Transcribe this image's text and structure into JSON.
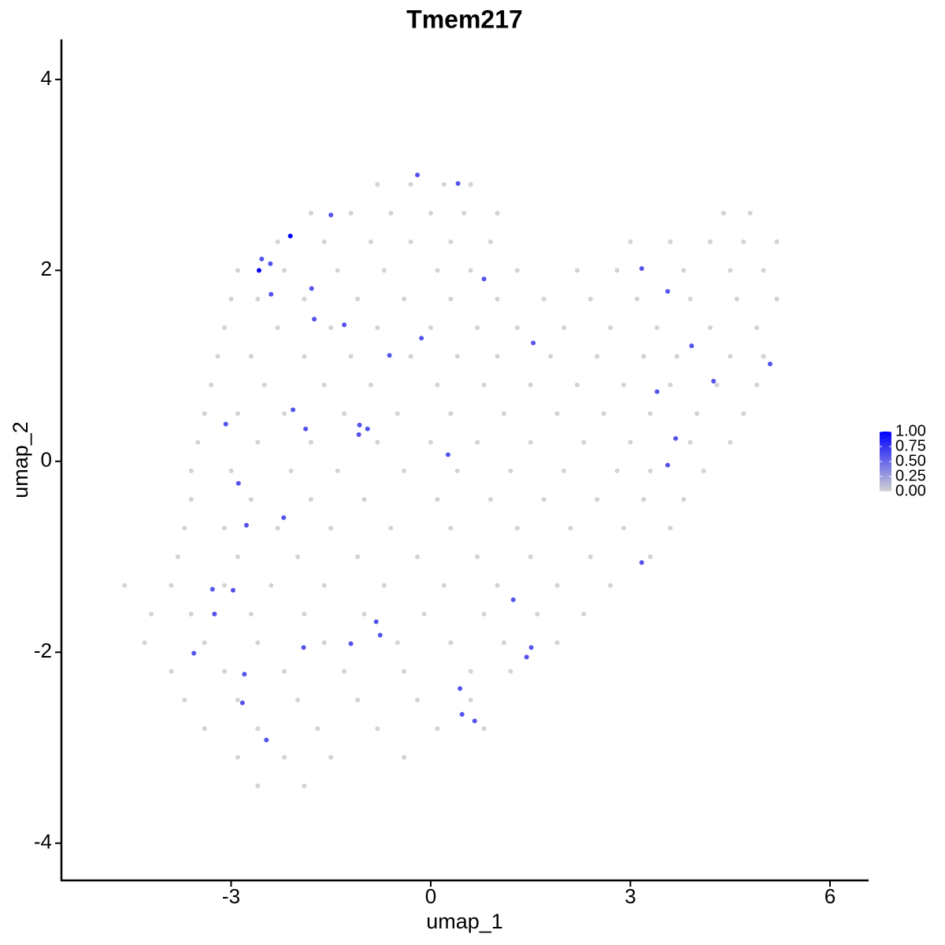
{
  "chart_data": {
    "type": "scatter",
    "title": "Tmem217",
    "x_label": "umap_1",
    "y_label": "umap_2",
    "xlim": [
      -5.55,
      6.58
    ],
    "ylim": [
      -4.39,
      4.42
    ],
    "xticks": [
      -3,
      0,
      3,
      6
    ],
    "yticks": [
      -4,
      -2,
      0,
      2,
      4
    ],
    "colors": [
      "#d3d3d3",
      "#0000ff"
    ],
    "legend_ticks": [
      {
        "value": 0,
        "label": "0.00"
      },
      {
        "value": 0.25,
        "label": "0.25"
      },
      {
        "value": 0.5,
        "label": "0.50"
      },
      {
        "value": 0.75,
        "label": "0.75"
      },
      {
        "value": 1,
        "label": "1.00"
      }
    ],
    "points": [
      [
        -0.8,
        2.9,
        0
      ],
      [
        -0.3,
        2.9,
        0
      ],
      [
        0.2,
        2.9,
        0
      ],
      [
        0.6,
        2.9,
        0
      ],
      [
        -1.8,
        2.6,
        0
      ],
      [
        -1.2,
        2.6,
        0
      ],
      [
        -0.6,
        2.6,
        0
      ],
      [
        0.0,
        2.6,
        0
      ],
      [
        0.5,
        2.6,
        0
      ],
      [
        1.0,
        2.6,
        0
      ],
      [
        4.4,
        2.6,
        0
      ],
      [
        4.8,
        2.6,
        0
      ],
      [
        -2.3,
        2.3,
        0
      ],
      [
        -1.6,
        2.3,
        0
      ],
      [
        -0.9,
        2.3,
        0
      ],
      [
        -0.3,
        2.3,
        0
      ],
      [
        0.3,
        2.3,
        0
      ],
      [
        0.9,
        2.3,
        0
      ],
      [
        3.0,
        2.3,
        0
      ],
      [
        3.6,
        2.3,
        0
      ],
      [
        4.2,
        2.3,
        0
      ],
      [
        4.7,
        2.3,
        0
      ],
      [
        5.2,
        2.3,
        0
      ],
      [
        -2.9,
        2.0,
        0
      ],
      [
        -2.2,
        2.0,
        0
      ],
      [
        -1.4,
        2.0,
        0
      ],
      [
        -0.7,
        2.0,
        0
      ],
      [
        0.1,
        2.0,
        0
      ],
      [
        0.6,
        2.0,
        0
      ],
      [
        1.3,
        2.0,
        0
      ],
      [
        2.2,
        2.0,
        0
      ],
      [
        2.8,
        2.0,
        0
      ],
      [
        3.8,
        2.0,
        0
      ],
      [
        4.5,
        2.0,
        0
      ],
      [
        5.0,
        2.0,
        0
      ],
      [
        -3.0,
        1.7,
        0
      ],
      [
        -2.6,
        1.7,
        0
      ],
      [
        -1.9,
        1.7,
        0
      ],
      [
        -1.1,
        1.7,
        0
      ],
      [
        -0.4,
        1.7,
        0
      ],
      [
        0.3,
        1.7,
        0
      ],
      [
        1.0,
        1.7,
        0
      ],
      [
        1.7,
        1.7,
        0
      ],
      [
        2.4,
        1.7,
        0
      ],
      [
        3.1,
        1.7,
        0
      ],
      [
        3.9,
        1.7,
        0
      ],
      [
        4.6,
        1.7,
        0
      ],
      [
        5.2,
        1.7,
        0
      ],
      [
        -3.1,
        1.4,
        0
      ],
      [
        -2.3,
        1.4,
        0
      ],
      [
        -1.5,
        1.4,
        0
      ],
      [
        -0.8,
        1.4,
        0
      ],
      [
        0.0,
        1.4,
        0
      ],
      [
        0.7,
        1.4,
        0
      ],
      [
        1.3,
        1.4,
        0
      ],
      [
        2.0,
        1.4,
        0
      ],
      [
        2.7,
        1.4,
        0
      ],
      [
        3.4,
        1.4,
        0
      ],
      [
        4.2,
        1.4,
        0
      ],
      [
        4.9,
        1.4,
        0
      ],
      [
        -3.2,
        1.1,
        0
      ],
      [
        -2.7,
        1.1,
        0
      ],
      [
        -1.9,
        1.1,
        0
      ],
      [
        -1.2,
        1.1,
        0
      ],
      [
        -0.3,
        1.1,
        0
      ],
      [
        0.4,
        1.1,
        0
      ],
      [
        1.0,
        1.1,
        0
      ],
      [
        1.8,
        1.1,
        0
      ],
      [
        2.5,
        1.1,
        0
      ],
      [
        3.2,
        1.1,
        0
      ],
      [
        3.7,
        1.1,
        0
      ],
      [
        4.5,
        1.1,
        0
      ],
      [
        5.0,
        1.1,
        0
      ],
      [
        -3.3,
        0.8,
        0
      ],
      [
        -2.5,
        0.8,
        0
      ],
      [
        -1.6,
        0.8,
        0
      ],
      [
        -0.9,
        0.8,
        0
      ],
      [
        0.1,
        0.8,
        0
      ],
      [
        0.8,
        0.8,
        0
      ],
      [
        1.5,
        0.8,
        0
      ],
      [
        2.2,
        0.8,
        0
      ],
      [
        2.9,
        0.8,
        0
      ],
      [
        3.6,
        0.8,
        0
      ],
      [
        4.3,
        0.8,
        0
      ],
      [
        4.9,
        0.8,
        0
      ],
      [
        -3.4,
        0.5,
        0
      ],
      [
        -2.9,
        0.5,
        0
      ],
      [
        -2.2,
        0.5,
        0
      ],
      [
        -1.3,
        0.5,
        0
      ],
      [
        -0.5,
        0.5,
        0
      ],
      [
        0.3,
        0.5,
        0
      ],
      [
        1.1,
        0.5,
        0
      ],
      [
        1.9,
        0.5,
        0
      ],
      [
        2.6,
        0.5,
        0
      ],
      [
        3.3,
        0.5,
        0
      ],
      [
        4.0,
        0.5,
        0
      ],
      [
        4.7,
        0.5,
        0
      ],
      [
        -3.5,
        0.2,
        0
      ],
      [
        -2.6,
        0.2,
        0
      ],
      [
        -1.8,
        0.2,
        0
      ],
      [
        -0.8,
        0.2,
        0
      ],
      [
        0.0,
        0.2,
        0
      ],
      [
        0.7,
        0.2,
        0
      ],
      [
        1.5,
        0.2,
        0
      ],
      [
        2.3,
        0.2,
        0
      ],
      [
        3.0,
        0.2,
        0
      ],
      [
        3.9,
        0.2,
        0
      ],
      [
        4.5,
        0.2,
        0
      ],
      [
        -3.6,
        -0.1,
        0
      ],
      [
        -3.0,
        -0.1,
        0
      ],
      [
        -2.1,
        -0.1,
        0
      ],
      [
        -1.4,
        -0.1,
        0
      ],
      [
        -0.4,
        -0.1,
        0
      ],
      [
        0.4,
        -0.1,
        0
      ],
      [
        1.2,
        -0.1,
        0
      ],
      [
        2.0,
        -0.1,
        0
      ],
      [
        2.8,
        -0.1,
        0
      ],
      [
        3.3,
        -0.1,
        0
      ],
      [
        4.1,
        -0.1,
        0
      ],
      [
        -3.6,
        -0.4,
        0
      ],
      [
        -2.7,
        -0.4,
        0
      ],
      [
        -1.8,
        -0.4,
        0
      ],
      [
        -1.0,
        -0.4,
        0
      ],
      [
        0.1,
        -0.4,
        0
      ],
      [
        0.9,
        -0.4,
        0
      ],
      [
        1.7,
        -0.4,
        0
      ],
      [
        2.5,
        -0.4,
        0
      ],
      [
        3.2,
        -0.4,
        0
      ],
      [
        3.8,
        -0.4,
        0
      ],
      [
        -3.7,
        -0.7,
        0
      ],
      [
        -3.1,
        -0.7,
        0
      ],
      [
        -2.3,
        -0.7,
        0
      ],
      [
        -1.5,
        -0.7,
        0
      ],
      [
        -0.6,
        -0.7,
        0
      ],
      [
        0.3,
        -0.7,
        0
      ],
      [
        1.3,
        -0.7,
        0
      ],
      [
        2.1,
        -0.7,
        0
      ],
      [
        2.9,
        -0.7,
        0
      ],
      [
        3.6,
        -0.7,
        0
      ],
      [
        -3.8,
        -1.0,
        0
      ],
      [
        -2.9,
        -1.0,
        0
      ],
      [
        -2.0,
        -1.0,
        0
      ],
      [
        -1.1,
        -1.0,
        0
      ],
      [
        -0.2,
        -1.0,
        0
      ],
      [
        0.7,
        -1.0,
        0
      ],
      [
        1.5,
        -1.0,
        0
      ],
      [
        2.4,
        -1.0,
        0
      ],
      [
        3.3,
        -1.0,
        0
      ],
      [
        -4.6,
        -1.3,
        0
      ],
      [
        -3.9,
        -1.3,
        0
      ],
      [
        -3.1,
        -1.3,
        0
      ],
      [
        -2.4,
        -1.3,
        0
      ],
      [
        -1.6,
        -1.3,
        0
      ],
      [
        -0.7,
        -1.3,
        0
      ],
      [
        0.2,
        -1.3,
        0
      ],
      [
        1.0,
        -1.3,
        0
      ],
      [
        1.9,
        -1.3,
        0
      ],
      [
        2.7,
        -1.3,
        0
      ],
      [
        -4.2,
        -1.6,
        0
      ],
      [
        -3.6,
        -1.6,
        0
      ],
      [
        -2.7,
        -1.6,
        0
      ],
      [
        -1.9,
        -1.6,
        0
      ],
      [
        -1.0,
        -1.6,
        0
      ],
      [
        -0.1,
        -1.6,
        0
      ],
      [
        0.8,
        -1.6,
        0
      ],
      [
        1.6,
        -1.6,
        0
      ],
      [
        2.3,
        -1.6,
        0
      ],
      [
        -4.3,
        -1.9,
        0
      ],
      [
        -3.4,
        -1.9,
        0
      ],
      [
        -2.6,
        -1.9,
        0
      ],
      [
        -1.6,
        -1.9,
        0
      ],
      [
        -0.5,
        -1.9,
        0
      ],
      [
        0.3,
        -1.9,
        0
      ],
      [
        1.1,
        -1.9,
        0
      ],
      [
        1.9,
        -1.9,
        0
      ],
      [
        -3.9,
        -2.2,
        0
      ],
      [
        -3.1,
        -2.2,
        0
      ],
      [
        -2.2,
        -2.2,
        0
      ],
      [
        -1.3,
        -2.2,
        0
      ],
      [
        -0.4,
        -2.2,
        0
      ],
      [
        0.6,
        -2.2,
        0
      ],
      [
        1.2,
        -2.2,
        0
      ],
      [
        -3.7,
        -2.5,
        0
      ],
      [
        -2.9,
        -2.5,
        0
      ],
      [
        -2.0,
        -2.5,
        0
      ],
      [
        -1.1,
        -2.5,
        0
      ],
      [
        -0.2,
        -2.5,
        0
      ],
      [
        0.6,
        -2.5,
        0
      ],
      [
        -3.4,
        -2.8,
        0
      ],
      [
        -2.6,
        -2.8,
        0
      ],
      [
        -1.7,
        -2.8,
        0
      ],
      [
        -0.8,
        -2.8,
        0
      ],
      [
        0.1,
        -2.8,
        0
      ],
      [
        0.8,
        -2.8,
        0
      ],
      [
        -2.9,
        -3.1,
        0
      ],
      [
        -2.2,
        -3.1,
        0
      ],
      [
        -1.5,
        -3.1,
        0
      ],
      [
        -0.4,
        -3.1,
        0
      ],
      [
        -2.6,
        -3.4,
        0
      ],
      [
        -1.9,
        -3.4,
        0
      ],
      [
        -2.54,
        2.12,
        0.6
      ],
      [
        -2.41,
        2.07,
        0.6
      ],
      [
        -2.4,
        1.75,
        0.6
      ],
      [
        -1.79,
        1.81,
        0.6
      ],
      [
        -1.75,
        1.49,
        0.6
      ],
      [
        -1.5,
        2.58,
        0.6
      ],
      [
        -1.3,
        1.43,
        0.6
      ],
      [
        -0.2,
        3.0,
        0.6
      ],
      [
        0.41,
        2.91,
        0.6
      ],
      [
        0.8,
        1.91,
        0.6
      ],
      [
        -0.14,
        1.29,
        0.6
      ],
      [
        -0.62,
        1.11,
        0.6
      ],
      [
        1.54,
        1.24,
        0.6
      ],
      [
        3.17,
        2.02,
        0.6
      ],
      [
        3.56,
        1.78,
        0.6
      ],
      [
        3.92,
        1.21,
        0.6
      ],
      [
        5.1,
        1.02,
        0.6
      ],
      [
        4.25,
        0.84,
        0.6
      ],
      [
        3.4,
        0.73,
        0.6
      ],
      [
        3.68,
        0.24,
        0.6
      ],
      [
        3.56,
        -0.04,
        0.6
      ],
      [
        3.17,
        -1.06,
        0.6
      ],
      [
        -2.07,
        0.54,
        0.6
      ],
      [
        -1.88,
        0.34,
        0.6
      ],
      [
        -1.07,
        0.38,
        0.6
      ],
      [
        -0.95,
        0.34,
        0.6
      ],
      [
        -1.08,
        0.28,
        0.6
      ],
      [
        0.26,
        0.07,
        0.6
      ],
      [
        -3.08,
        0.39,
        0.6
      ],
      [
        -2.89,
        -0.23,
        0.6
      ],
      [
        -2.77,
        -0.67,
        0.6
      ],
      [
        -2.21,
        -0.59,
        0.6
      ],
      [
        -3.28,
        -1.34,
        0.6
      ],
      [
        -2.97,
        -1.35,
        0.6
      ],
      [
        -3.25,
        -1.6,
        0.6
      ],
      [
        -3.56,
        -2.01,
        0.6
      ],
      [
        -2.8,
        -2.23,
        0.6
      ],
      [
        -2.83,
        -2.53,
        0.6
      ],
      [
        -2.47,
        -2.92,
        0.6
      ],
      [
        -1.91,
        -1.95,
        0.6
      ],
      [
        -1.2,
        -1.91,
        0.6
      ],
      [
        -0.82,
        -1.68,
        0.6
      ],
      [
        -0.76,
        -1.82,
        0.6
      ],
      [
        1.24,
        -1.45,
        0.6
      ],
      [
        1.51,
        -1.95,
        0.6
      ],
      [
        1.44,
        -2.05,
        0.6
      ],
      [
        0.44,
        -2.38,
        0.6
      ],
      [
        0.47,
        -2.65,
        0.6
      ],
      [
        0.66,
        -2.72,
        0.6
      ],
      [
        -2.58,
        2.0,
        1.0
      ],
      [
        -2.11,
        2.36,
        1.0
      ]
    ]
  }
}
